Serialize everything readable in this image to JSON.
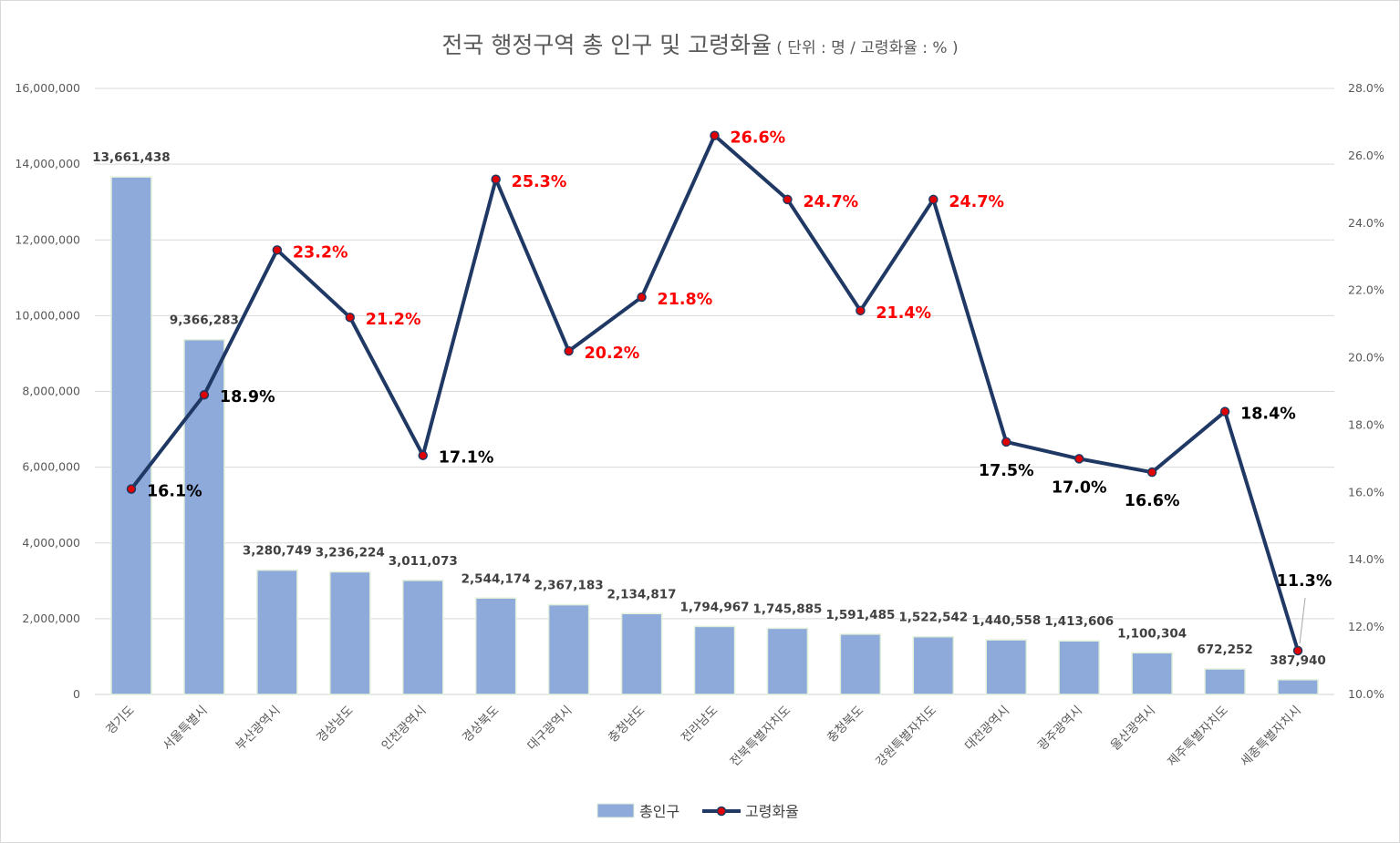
{
  "title": "전국 행정구역 총 인구 및 고령화율",
  "subtitle": "( 단위 : 명 / 고령화율 : % )",
  "chart_data": {
    "type": "bar",
    "categories": [
      "경기도",
      "서울특별시",
      "부산광역시",
      "경상남도",
      "인천광역시",
      "경상북도",
      "대구광역시",
      "충청남도",
      "전라남도",
      "전북특별자치도",
      "충청북도",
      "강원특별자치도",
      "대전광역시",
      "광주광역시",
      "울산광역시",
      "제주특별자치도",
      "세종특별자치시"
    ],
    "series": [
      {
        "name": "총인구",
        "type": "bar",
        "axis": "left",
        "color": "#8eaadb",
        "values": [
          13661438,
          9366283,
          3280749,
          3236224,
          3011073,
          2544174,
          2367183,
          2134817,
          1794967,
          1745885,
          1591485,
          1522542,
          1440558,
          1413606,
          1100304,
          672252,
          387940
        ],
        "labels": [
          "13,661,438",
          "9,366,283",
          "3,280,749",
          "3,236,224",
          "3,011,073",
          "2,544,174",
          "2,367,183",
          "2,134,817",
          "1,794,967",
          "1,745,885",
          "1,591,485",
          "1,522,542",
          "1,440,558",
          "1,413,606",
          "1,100,304",
          "672,252",
          "387,940"
        ]
      },
      {
        "name": "고령화율",
        "type": "line",
        "axis": "right",
        "color": "#1f3864",
        "marker_color": "#e00000",
        "values": [
          16.1,
          18.9,
          23.2,
          21.2,
          17.1,
          25.3,
          20.2,
          21.8,
          26.6,
          24.7,
          21.4,
          24.7,
          17.5,
          17.0,
          16.6,
          18.4,
          11.3
        ],
        "labels": [
          "16.1%",
          "18.9%",
          "23.2%",
          "21.2%",
          "17.1%",
          "25.3%",
          "20.2%",
          "21.8%",
          "26.6%",
          "24.7%",
          "21.4%",
          "24.7%",
          "17.5%",
          "17.0%",
          "16.6%",
          "18.4%",
          "11.3%"
        ],
        "label_colors": [
          "#000000",
          "#000000",
          "#ff0000",
          "#ff0000",
          "#000000",
          "#ff0000",
          "#ff0000",
          "#ff0000",
          "#ff0000",
          "#ff0000",
          "#ff0000",
          "#ff0000",
          "#000000",
          "#000000",
          "#000000",
          "#000000",
          "#000000"
        ],
        "label_positions": [
          "right",
          "right",
          "right",
          "right",
          "right",
          "right",
          "right",
          "right",
          "right",
          "right",
          "right",
          "right",
          "below",
          "below",
          "below",
          "right",
          "above"
        ]
      }
    ],
    "y_left": {
      "ylim": [
        0,
        16000000
      ],
      "ticks": [
        "0",
        "2,000,000",
        "4,000,000",
        "6,000,000",
        "8,000,000",
        "10,000,000",
        "12,000,000",
        "14,000,000",
        "16,000,000"
      ]
    },
    "y_right": {
      "ylim": [
        10,
        28
      ],
      "ticks": [
        "10.0%",
        "12.0%",
        "14.0%",
        "16.0%",
        "18.0%",
        "20.0%",
        "22.0%",
        "24.0%",
        "26.0%",
        "28.0%"
      ]
    },
    "grid": true,
    "legend": {
      "position": "bottom-center",
      "entries": [
        "총인구",
        "고령화율"
      ]
    }
  }
}
